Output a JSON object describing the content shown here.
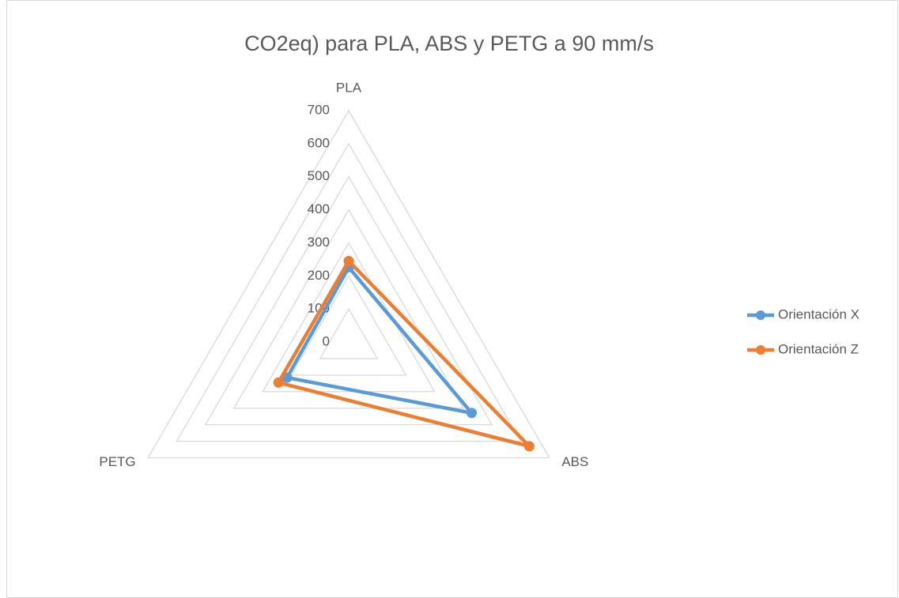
{
  "chart_data": {
    "type": "radar",
    "title": "CO2eq) para PLA, ABS y PETG a 90 mm/s",
    "categories": [
      "PLA",
      "ABS",
      "PETG"
    ],
    "series": [
      {
        "name": "Orientación X",
        "color": "#5b9bd5",
        "values": [
          226,
          429,
          215
        ]
      },
      {
        "name": "Orientación Z",
        "color": "#ed7d31",
        "values": [
          245,
          630,
          245
        ]
      }
    ],
    "rlim": [
      0,
      700
    ],
    "rticks": [
      0,
      100,
      200,
      300,
      400,
      500,
      600,
      700
    ],
    "grid": true,
    "legend": "right"
  }
}
